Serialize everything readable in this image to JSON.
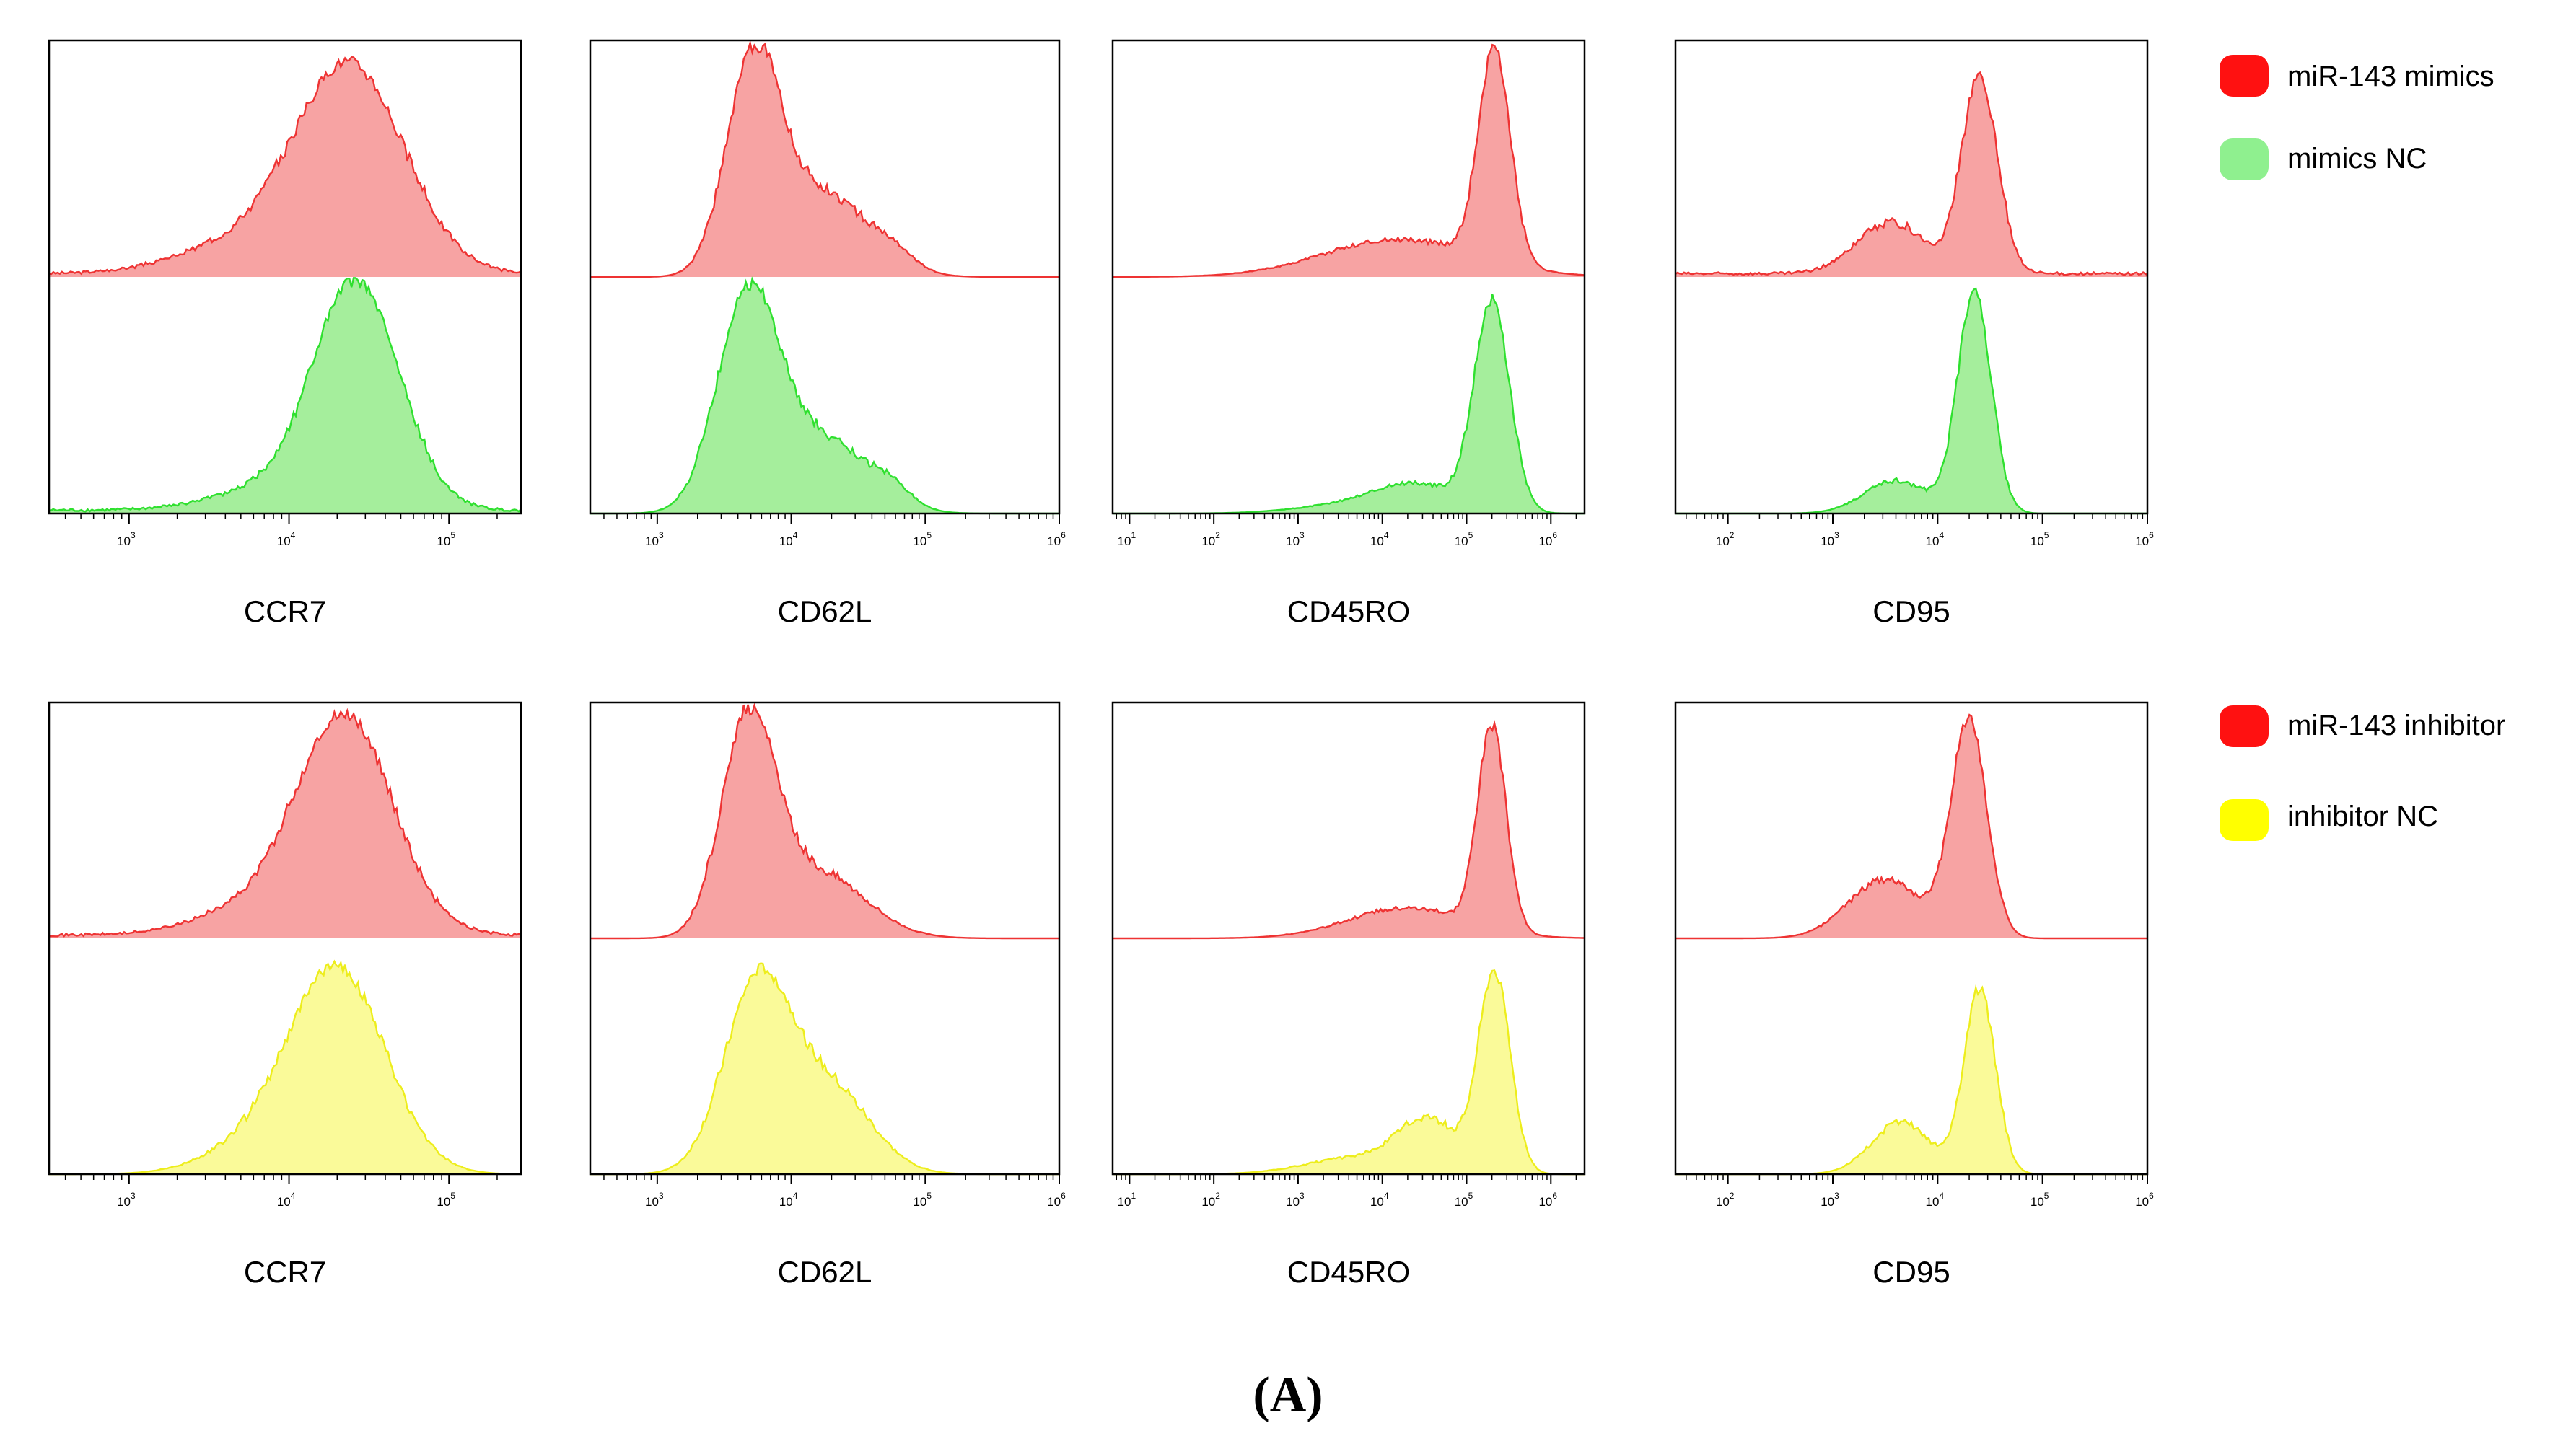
{
  "panel_label": "(A)",
  "colors": {
    "red_fill": "#f7a3a3",
    "red_line": "#ee3333",
    "green_fill": "#a5ee9c",
    "green_line": "#2fe02f",
    "yellow_fill": "#fafa99",
    "yellow_line": "#eded1c",
    "swatch_red": "#ff1111",
    "swatch_green": "#8ff08f",
    "swatch_yellow": "#ffff00"
  },
  "legends": [
    {
      "items": [
        {
          "label": "miR-143 mimics",
          "color_key": "swatch_red"
        },
        {
          "label": "mimics NC",
          "color_key": "swatch_green"
        }
      ]
    },
    {
      "items": [
        {
          "label": "miR-143 inhibitor",
          "color_key": "swatch_red"
        },
        {
          "label": "inhibitor NC",
          "color_key": "swatch_yellow"
        }
      ]
    }
  ],
  "chart_data": [
    {
      "type": "area",
      "row": 1,
      "marker": "CCR7",
      "xscale": "log10",
      "xlim_log10": [
        2.5,
        5.45
      ],
      "ticks": [
        "10^3",
        "10^4",
        "10^5"
      ],
      "series": [
        {
          "name": "miR-143 mimics",
          "color": "red",
          "baseline": 0.02,
          "peaks": [
            {
              "center": 4.38,
              "width": 0.34,
              "height": 0.87
            }
          ],
          "shoulders": [
            {
              "center": 3.7,
              "width": 0.4,
              "height": 0.12
            }
          ]
        },
        {
          "name": "mimics NC",
          "color": "green",
          "baseline": 0.02,
          "peaks": [
            {
              "center": 4.42,
              "width": 0.27,
              "height": 0.95
            }
          ],
          "shoulders": [
            {
              "center": 3.85,
              "width": 0.35,
              "height": 0.08
            }
          ]
        }
      ]
    },
    {
      "type": "area",
      "row": 1,
      "marker": "CD62L",
      "xscale": "log10",
      "xlim_log10": [
        2.5,
        6.0
      ],
      "ticks": [
        "10^3",
        "10^4",
        "10^5",
        "10^6"
      ],
      "series": [
        {
          "name": "miR-143 mimics",
          "color": "red",
          "baseline": 0.0,
          "peaks": [
            {
              "center": 3.72,
              "width": 0.2,
              "height": 0.9
            }
          ],
          "shoulders": [
            {
              "center": 4.25,
              "width": 0.33,
              "height": 0.35
            },
            {
              "center": 4.78,
              "width": 0.15,
              "height": 0.05
            }
          ]
        },
        {
          "name": "mimics NC",
          "color": "green",
          "baseline": 0.0,
          "peaks": [
            {
              "center": 3.68,
              "width": 0.23,
              "height": 0.92
            }
          ],
          "shoulders": [
            {
              "center": 4.25,
              "width": 0.32,
              "height": 0.3
            },
            {
              "center": 4.75,
              "width": 0.15,
              "height": 0.07
            }
          ]
        }
      ]
    },
    {
      "type": "area",
      "row": 1,
      "marker": "CD45RO",
      "xscale": "log10",
      "xlim_log10": [
        0.8,
        6.4
      ],
      "ticks": [
        "10^1",
        "10^2",
        "10^3",
        "10^4",
        "10^5",
        "10^6"
      ],
      "series": [
        {
          "name": "miR-143 mimics",
          "color": "red",
          "baseline": 0.0,
          "peaks": [
            {
              "center": 5.33,
              "width": 0.19,
              "height": 0.9
            }
          ],
          "shoulders": [
            {
              "center": 4.2,
              "width": 0.9,
              "height": 0.16
            }
          ]
        },
        {
          "name": "mimics NC",
          "color": "green",
          "baseline": 0.0,
          "peaks": [
            {
              "center": 5.3,
              "width": 0.21,
              "height": 0.88
            }
          ],
          "shoulders": [
            {
              "center": 4.4,
              "width": 0.5,
              "height": 0.12
            },
            {
              "center": 3.5,
              "width": 0.6,
              "height": 0.03
            }
          ]
        }
      ]
    },
    {
      "type": "area",
      "row": 1,
      "marker": "CD95",
      "xscale": "log10",
      "xlim_log10": [
        1.5,
        6.0
      ],
      "ticks": [
        "10^2",
        "10^3",
        "10^4",
        "10^5",
        "10^6"
      ],
      "series": [
        {
          "name": "miR-143 mimics",
          "color": "red",
          "baseline": 0.02,
          "peaks": [
            {
              "center": 4.4,
              "width": 0.17,
              "height": 0.83
            }
          ],
          "shoulders": [
            {
              "center": 3.55,
              "width": 0.32,
              "height": 0.22
            }
          ]
        },
        {
          "name": "mimics NC",
          "color": "green",
          "baseline": 0.0,
          "peaks": [
            {
              "center": 4.35,
              "width": 0.16,
              "height": 0.93
            }
          ],
          "shoulders": [
            {
              "center": 3.6,
              "width": 0.3,
              "height": 0.14
            }
          ]
        }
      ]
    },
    {
      "type": "area",
      "row": 2,
      "marker": "CCR7",
      "xscale": "log10",
      "xlim_log10": [
        2.5,
        5.45
      ],
      "ticks": [
        "10^3",
        "10^4",
        "10^5"
      ],
      "series": [
        {
          "name": "miR-143 inhibitor",
          "color": "red",
          "baseline": 0.02,
          "peaks": [
            {
              "center": 4.35,
              "width": 0.3,
              "height": 0.92
            }
          ],
          "shoulders": [
            {
              "center": 3.75,
              "width": 0.35,
              "height": 0.1
            }
          ]
        },
        {
          "name": "inhibitor NC",
          "color": "yellow",
          "baseline": 0.0,
          "peaks": [
            {
              "center": 4.3,
              "width": 0.3,
              "height": 0.87
            }
          ],
          "shoulders": [
            {
              "center": 3.75,
              "width": 0.3,
              "height": 0.1
            }
          ]
        }
      ]
    },
    {
      "type": "area",
      "row": 2,
      "marker": "CD62L",
      "xscale": "log10",
      "xlim_log10": [
        2.5,
        6.0
      ],
      "ticks": [
        "10^3",
        "10^4",
        "10^5",
        "10^6"
      ],
      "series": [
        {
          "name": "miR-143 inhibitor",
          "color": "red",
          "baseline": 0.0,
          "peaks": [
            {
              "center": 3.68,
              "width": 0.2,
              "height": 0.9
            }
          ],
          "shoulders": [
            {
              "center": 4.2,
              "width": 0.35,
              "height": 0.28
            }
          ]
        },
        {
          "name": "inhibitor NC",
          "color": "yellow",
          "baseline": 0.0,
          "peaks": [
            {
              "center": 3.75,
              "width": 0.25,
              "height": 0.8
            }
          ],
          "shoulders": [
            {
              "center": 4.3,
              "width": 0.3,
              "height": 0.35
            }
          ]
        }
      ]
    },
    {
      "type": "area",
      "row": 2,
      "marker": "CD45RO",
      "xscale": "log10",
      "xlim_log10": [
        0.8,
        6.4
      ],
      "ticks": [
        "10^1",
        "10^2",
        "10^3",
        "10^4",
        "10^5",
        "10^6"
      ],
      "series": [
        {
          "name": "miR-143 inhibitor",
          "color": "red",
          "baseline": 0.0,
          "peaks": [
            {
              "center": 5.3,
              "width": 0.17,
              "height": 0.86
            }
          ],
          "shoulders": [
            {
              "center": 4.3,
              "width": 0.7,
              "height": 0.13
            }
          ]
        },
        {
          "name": "inhibitor NC",
          "color": "yellow",
          "baseline": 0.0,
          "peaks": [
            {
              "center": 5.33,
              "width": 0.19,
              "height": 0.85
            }
          ],
          "shoulders": [
            {
              "center": 4.55,
              "width": 0.35,
              "height": 0.22
            },
            {
              "center": 3.7,
              "width": 0.6,
              "height": 0.07
            }
          ]
        }
      ]
    },
    {
      "type": "area",
      "row": 2,
      "marker": "CD95",
      "xscale": "log10",
      "xlim_log10": [
        1.5,
        6.0
      ],
      "ticks": [
        "10^2",
        "10^3",
        "10^4",
        "10^5",
        "10^6"
      ],
      "series": [
        {
          "name": "miR-143 inhibitor",
          "color": "red",
          "baseline": 0.0,
          "peaks": [
            {
              "center": 4.3,
              "width": 0.17,
              "height": 0.92
            }
          ],
          "shoulders": [
            {
              "center": 3.5,
              "width": 0.35,
              "height": 0.25
            }
          ]
        },
        {
          "name": "inhibitor NC",
          "color": "yellow",
          "baseline": 0.0,
          "peaks": [
            {
              "center": 4.4,
              "width": 0.15,
              "height": 0.78
            }
          ],
          "shoulders": [
            {
              "center": 3.65,
              "width": 0.28,
              "height": 0.22
            }
          ]
        }
      ]
    }
  ]
}
